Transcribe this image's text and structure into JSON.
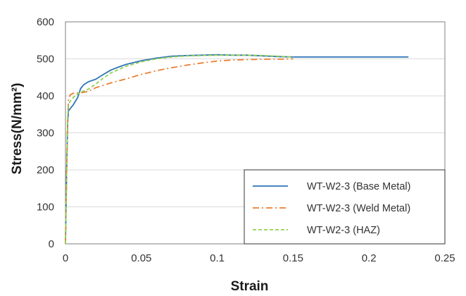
{
  "chart_data": {
    "type": "line",
    "title": "",
    "xlabel": "Strain",
    "ylabel": "Stress(N/mm²)",
    "xlim": [
      0,
      0.25
    ],
    "ylim": [
      0,
      600
    ],
    "x_ticks": [
      0,
      0.05,
      0.1,
      0.15,
      0.2,
      0.25
    ],
    "x_tick_labels": [
      "0",
      "0.05",
      "0.1",
      "0.15",
      "0.2",
      "0.25"
    ],
    "y_ticks": [
      0,
      100,
      200,
      300,
      400,
      500,
      600
    ],
    "y_tick_labels": [
      "0",
      "100",
      "200",
      "300",
      "400",
      "500",
      "600"
    ],
    "grid": "horizontal",
    "legend_position": "bottom-right",
    "series": [
      {
        "name": "WT-W2-3 (Base Metal)",
        "color": "#2e75b6",
        "dash": "solid",
        "x": [
          0,
          0.0008,
          0.0015,
          0.002,
          0.003,
          0.005,
          0.008,
          0.01,
          0.012,
          0.015,
          0.02,
          0.025,
          0.03,
          0.035,
          0.04,
          0.05,
          0.06,
          0.07,
          0.08,
          0.09,
          0.1,
          0.11,
          0.12,
          0.13,
          0.14,
          0.15,
          0.16,
          0.18,
          0.2,
          0.226
        ],
        "y": [
          0,
          200,
          330,
          360,
          365,
          375,
          395,
          420,
          430,
          438,
          445,
          458,
          470,
          478,
          485,
          495,
          502,
          507,
          509,
          510,
          511,
          510,
          510,
          508,
          506,
          505,
          505,
          505,
          505,
          505
        ]
      },
      {
        "name": "WT-W2-3 (Weld Metal)",
        "color": "#ed7d31",
        "dash": "dashdot",
        "x": [
          0,
          0.0008,
          0.0015,
          0.002,
          0.003,
          0.005,
          0.008,
          0.01,
          0.015,
          0.02,
          0.03,
          0.04,
          0.05,
          0.06,
          0.07,
          0.08,
          0.09,
          0.1,
          0.11,
          0.12,
          0.13,
          0.14,
          0.15
        ],
        "y": [
          0,
          200,
          340,
          390,
          402,
          407,
          408,
          408,
          412,
          422,
          435,
          446,
          458,
          468,
          476,
          483,
          489,
          494,
          497,
          498,
          499,
          499,
          500
        ]
      },
      {
        "name": "WT-W2-3 (HAZ)",
        "color": "#92d050",
        "dash": "dashed",
        "x": [
          0,
          0.0008,
          0.0015,
          0.002,
          0.003,
          0.005,
          0.008,
          0.01,
          0.015,
          0.02,
          0.025,
          0.03,
          0.04,
          0.05,
          0.06,
          0.07,
          0.08,
          0.09,
          0.1,
          0.11,
          0.12,
          0.13,
          0.14,
          0.15
        ],
        "y": [
          0,
          200,
          345,
          375,
          385,
          395,
          405,
          410,
          418,
          432,
          448,
          462,
          480,
          492,
          500,
          505,
          508,
          509,
          510,
          510,
          510,
          509,
          507,
          505
        ]
      }
    ]
  }
}
